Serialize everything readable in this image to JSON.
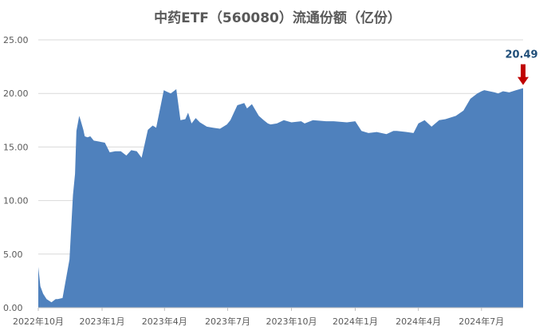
{
  "chart_data": {
    "type": "area",
    "title": "中药ETF（560080）流通份额（亿份）",
    "xlabel": "",
    "ylabel": "",
    "ylim": [
      0,
      25
    ],
    "yticks": [
      "0.00",
      "5.00",
      "10.00",
      "15.00",
      "20.00",
      "25.00"
    ],
    "xtick_labels": [
      "2022年10月",
      "2023年1月",
      "2023年4月",
      "2023年7月",
      "2023年10月",
      "2024年1月",
      "2024年4月",
      "2024年7月"
    ],
    "grid": true,
    "legend": "none",
    "series_color": "#4f81bd",
    "callout": {
      "text": "20.49",
      "value": 20.49,
      "color": "#1f4e79",
      "arrow_color": "#c00000"
    },
    "series": [
      {
        "x": [
          "2022-10-01",
          "2022-10-04",
          "2022-10-08",
          "2022-10-13",
          "2022-10-20",
          "2022-10-26",
          "2022-10-29",
          "2022-11-05",
          "2022-11-15",
          "2022-11-20",
          "2022-11-23",
          "2022-11-25",
          "2022-11-27",
          "2022-11-29",
          "2022-12-01",
          "2022-12-05",
          "2022-12-07",
          "2022-12-11",
          "2022-12-15",
          "2022-12-20",
          "2022-12-28",
          "2023-01-05",
          "2023-01-12",
          "2023-01-20",
          "2023-01-28",
          "2023-02-05",
          "2023-02-12",
          "2023-02-20",
          "2023-02-27",
          "2023-03-08",
          "2023-03-15",
          "2023-03-20",
          "2023-03-31",
          "2023-04-03",
          "2023-04-10",
          "2023-04-18",
          "2023-04-24",
          "2023-05-01",
          "2023-05-05",
          "2023-05-10",
          "2023-05-16",
          "2023-05-22",
          "2023-06-01",
          "2023-06-10",
          "2023-06-20",
          "2023-06-30",
          "2023-07-05",
          "2023-07-15",
          "2023-07-25",
          "2023-07-29",
          "2023-08-05",
          "2023-08-15",
          "2023-08-22",
          "2023-08-28",
          "2023-09-01",
          "2023-09-10",
          "2023-09-20",
          "2023-10-01",
          "2023-10-15",
          "2023-10-20",
          "2023-11-01",
          "2023-11-20",
          "2023-12-01",
          "2023-12-20",
          "2024-01-01",
          "2024-01-10",
          "2024-01-20",
          "2024-02-01",
          "2024-02-15",
          "2024-02-25",
          "2024-03-01",
          "2024-03-15",
          "2024-03-25",
          "2024-04-01",
          "2024-04-10",
          "2024-04-20",
          "2024-05-01",
          "2024-05-10",
          "2024-05-25",
          "2024-06-05",
          "2024-06-15",
          "2024-06-25",
          "2024-07-01",
          "2024-07-05",
          "2024-07-20",
          "2024-07-25",
          "2024-08-01",
          "2024-08-10",
          "2024-08-20",
          "2024-08-30"
        ],
        "values": [
          3.8,
          2.0,
          1.3,
          0.8,
          0.5,
          0.8,
          0.8,
          0.9,
          4.5,
          10.5,
          12.5,
          16.5,
          17.2,
          17.9,
          17.5,
          16.6,
          16.0,
          15.9,
          16.0,
          15.6,
          15.5,
          15.4,
          14.5,
          14.6,
          14.6,
          14.2,
          14.7,
          14.6,
          14.0,
          16.6,
          17.0,
          16.8,
          20.3,
          20.2,
          20.0,
          20.4,
          17.5,
          17.6,
          18.2,
          17.2,
          17.7,
          17.3,
          16.9,
          16.8,
          16.7,
          17.1,
          17.5,
          18.9,
          19.1,
          18.6,
          19.0,
          17.9,
          17.5,
          17.2,
          17.1,
          17.2,
          17.5,
          17.3,
          17.4,
          17.2,
          17.5,
          17.4,
          17.4,
          17.3,
          17.4,
          16.5,
          16.3,
          16.4,
          16.2,
          16.5,
          16.5,
          16.4,
          16.3,
          17.2,
          17.5,
          16.9,
          17.5,
          17.6,
          17.9,
          18.4,
          19.5,
          20.0,
          20.2,
          20.3,
          20.1,
          20.0,
          20.2,
          20.1,
          20.3,
          20.49
        ]
      }
    ]
  }
}
